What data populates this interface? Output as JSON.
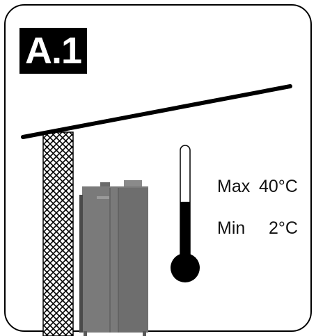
{
  "badge": {
    "label": "A.1"
  },
  "temperature": {
    "max_label": "Max",
    "max_value": "40°C",
    "min_label": "Min",
    "min_value": "2°C"
  },
  "colors": {
    "frame": "#000000",
    "boiler_body": "#7a7a7a",
    "boiler_shadow": "#5e5e5e",
    "thermometer_fill": "#000000"
  },
  "icons": {
    "thermometer": "thermometer-icon",
    "boiler": "boiler-unit-icon",
    "roof": "roof-shelter-icon",
    "wall": "hatched-wall-icon"
  }
}
